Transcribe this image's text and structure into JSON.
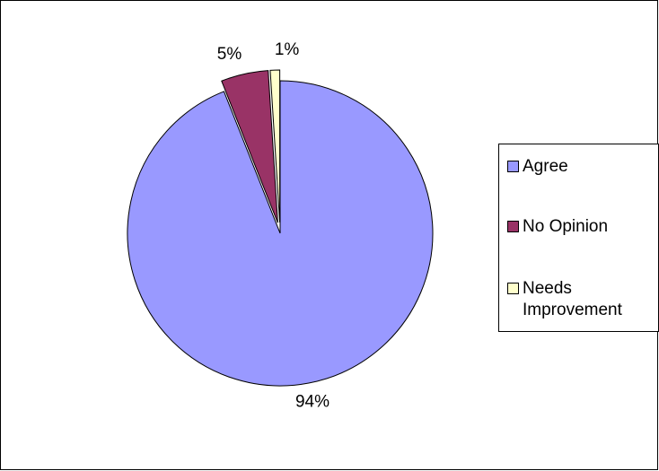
{
  "chart_data": {
    "type": "pie",
    "categories": [
      "Agree",
      "No Opinion",
      "Needs Improvement"
    ],
    "values": [
      94,
      5,
      1
    ],
    "data_labels": [
      "94%",
      "5%",
      "1%"
    ],
    "colors": [
      "#9999ff",
      "#993366",
      "#ffffcc"
    ],
    "exploded": [
      false,
      true,
      true
    ],
    "start_angle_deg": 0,
    "direction": "clockwise",
    "title": "",
    "legend_position": "right"
  },
  "legend": {
    "items": [
      {
        "label": "Agree",
        "color": "#9999ff"
      },
      {
        "label": "No Opinion",
        "color": "#993366"
      },
      {
        "label": "Needs Improvement",
        "color": "#ffffcc"
      }
    ]
  }
}
